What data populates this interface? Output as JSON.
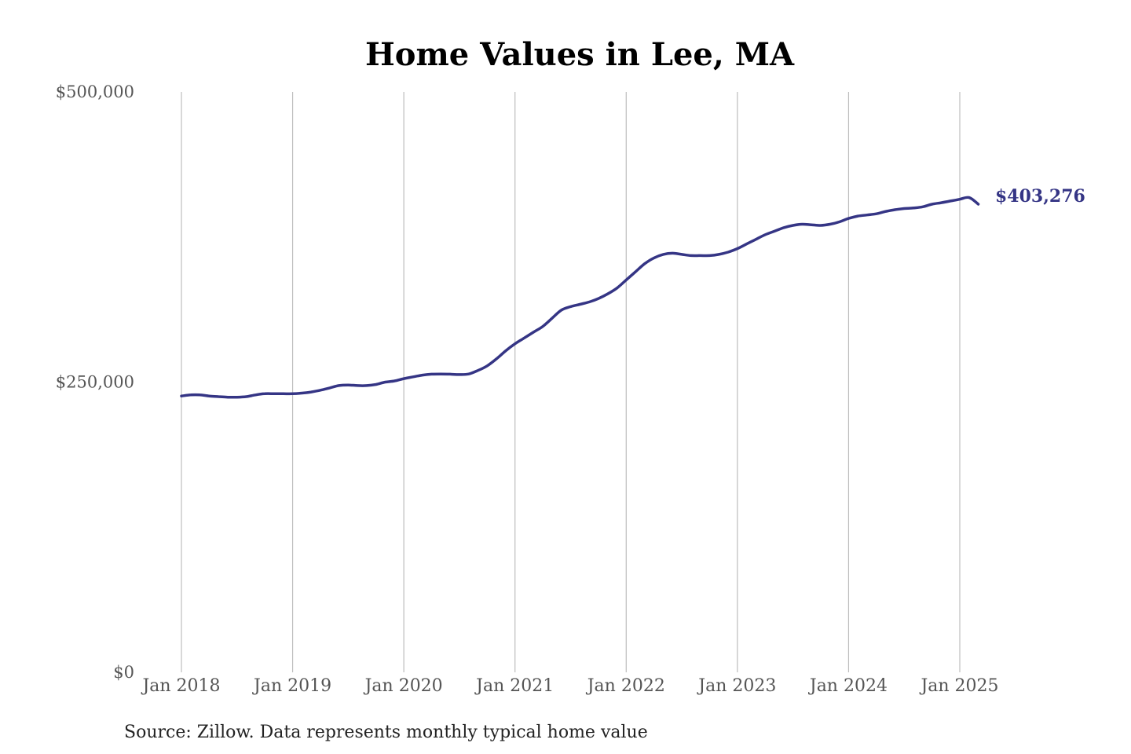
{
  "colors": {
    "series": "#353585",
    "grid": "#bdbdbd",
    "background": "#ffffff"
  },
  "source_note": "Source: Zillow. Data represents monthly typical home value",
  "chart_data": {
    "type": "line",
    "title": "Home Values in Lee, MA",
    "xlabel": "",
    "ylabel": "",
    "ylim": [
      0,
      500000
    ],
    "yticks": [
      0,
      250000,
      500000
    ],
    "ytick_labels": [
      "$0",
      "$250,000",
      "$500,000"
    ],
    "xticks": [
      "2018-01",
      "2019-01",
      "2020-01",
      "2021-01",
      "2022-01",
      "2023-01",
      "2024-01",
      "2025-01"
    ],
    "xtick_labels": [
      "Jan 2018",
      "Jan 2019",
      "Jan 2020",
      "Jan 2021",
      "Jan 2022",
      "Jan 2023",
      "Jan 2024",
      "Jan 2025"
    ],
    "grid": "vertical",
    "legend": "none",
    "end_label": "$403,276",
    "series": [
      {
        "color": "#353585",
        "x": [
          "2018-01",
          "2018-02",
          "2018-03",
          "2018-04",
          "2018-05",
          "2018-06",
          "2018-07",
          "2018-08",
          "2018-09",
          "2018-10",
          "2018-11",
          "2018-12",
          "2019-01",
          "2019-02",
          "2019-03",
          "2019-04",
          "2019-05",
          "2019-06",
          "2019-07",
          "2019-08",
          "2019-09",
          "2019-10",
          "2019-11",
          "2019-12",
          "2020-01",
          "2020-02",
          "2020-03",
          "2020-04",
          "2020-05",
          "2020-06",
          "2020-07",
          "2020-08",
          "2020-09",
          "2020-10",
          "2020-11",
          "2020-12",
          "2021-01",
          "2021-02",
          "2021-03",
          "2021-04",
          "2021-05",
          "2021-06",
          "2021-07",
          "2021-08",
          "2021-09",
          "2021-10",
          "2021-11",
          "2021-12",
          "2022-01",
          "2022-02",
          "2022-03",
          "2022-04",
          "2022-05",
          "2022-06",
          "2022-07",
          "2022-08",
          "2022-09",
          "2022-10",
          "2022-11",
          "2022-12",
          "2023-01",
          "2023-02",
          "2023-03",
          "2023-04",
          "2023-05",
          "2023-06",
          "2023-07",
          "2023-08",
          "2023-09",
          "2023-10",
          "2023-11",
          "2023-12",
          "2024-01",
          "2024-02",
          "2024-03",
          "2024-04",
          "2024-05",
          "2024-06",
          "2024-07",
          "2024-08",
          "2024-09",
          "2024-10",
          "2024-11",
          "2024-12",
          "2025-01",
          "2025-02",
          "2025-03"
        ],
        "values": [
          238000,
          239000,
          239000,
          238000,
          237500,
          237000,
          237000,
          237500,
          239000,
          240000,
          240000,
          240000,
          240000,
          240500,
          241500,
          243000,
          245000,
          247000,
          247500,
          247000,
          247000,
          248000,
          250000,
          251000,
          253000,
          254500,
          256000,
          256800,
          257000,
          256800,
          256500,
          257000,
          260000,
          264000,
          270000,
          277000,
          283000,
          288000,
          293000,
          298000,
          305000,
          312000,
          315000,
          317000,
          319000,
          322000,
          326000,
          331000,
          338000,
          345000,
          352000,
          357000,
          360000,
          361000,
          360000,
          359000,
          359000,
          359000,
          360000,
          362000,
          365000,
          369000,
          373000,
          377000,
          380000,
          383000,
          385000,
          386000,
          385500,
          385000,
          386000,
          388000,
          391000,
          393000,
          394000,
          395000,
          397000,
          398500,
          399500,
          400000,
          401000,
          403276,
          404500,
          406000,
          407500,
          409000,
          403276
        ]
      }
    ]
  }
}
